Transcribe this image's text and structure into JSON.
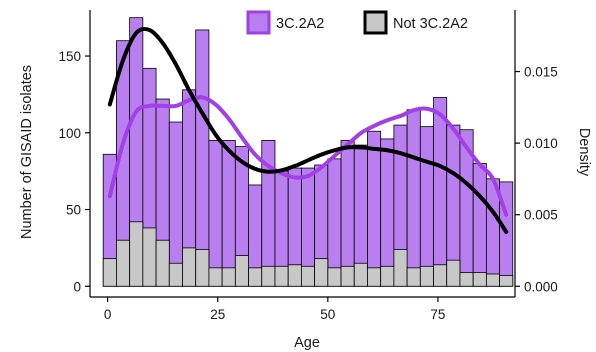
{
  "chart_data": {
    "type": "histogram-with-density",
    "xlabel": "Age",
    "ylabel_left": "Number of GISAID isolates",
    "ylabel_right": "Density",
    "xlim": [
      -4,
      92.5
    ],
    "ylim_left": [
      -7,
      180
    ],
    "ylim_right": [
      -0.00075,
      0.0193
    ],
    "x_ticks": [
      0,
      25,
      50,
      75
    ],
    "y_left_ticks": [
      0,
      50,
      100,
      150
    ],
    "y_right_ticks": [
      0.0,
      0.005,
      0.01,
      0.015
    ],
    "y_right_tick_labels": [
      "0.000",
      "0.005",
      "0.010",
      "0.015"
    ],
    "bin_width": 3,
    "bin_starts": [
      -1,
      2,
      5,
      8,
      11,
      14,
      17,
      20,
      23,
      26,
      29,
      32,
      35,
      38,
      41,
      44,
      47,
      50,
      53,
      56,
      59,
      62,
      65,
      68,
      71,
      74,
      77,
      80,
      83,
      86,
      89
    ],
    "series": [
      {
        "name": "3C.2A2",
        "color": "#b97ff0",
        "curve_color": "#a23fe6",
        "values": [
          86,
          160,
          175,
          142,
          122,
          107,
          128,
          167,
          95,
          95,
          91,
          66,
          95,
          75,
          77,
          77,
          79,
          83,
          95,
          92,
          101,
          96,
          105,
          115,
          104,
          123,
          105,
          102,
          80,
          70,
          68
        ],
        "density": [
          0.0063,
          0.01,
          0.0122,
          0.0126,
          0.0126,
          0.0126,
          0.013,
          0.0132,
          0.0127,
          0.0117,
          0.0104,
          0.0092,
          0.0084,
          0.0079,
          0.0076,
          0.0077,
          0.0083,
          0.0091,
          0.0099,
          0.0107,
          0.0112,
          0.0116,
          0.0119,
          0.0123,
          0.0124,
          0.012,
          0.011,
          0.0097,
          0.0085,
          0.0075,
          0.005
        ]
      },
      {
        "name": "Not 3C.2A2",
        "color": "#c8c8c8",
        "curve_color": "#000000",
        "values": [
          18,
          30,
          42,
          38,
          30,
          15,
          25,
          24,
          12,
          12,
          20,
          12,
          13,
          13,
          14,
          13,
          18,
          12,
          13,
          15,
          12,
          13,
          24,
          12,
          13,
          14,
          17,
          9,
          9,
          8,
          7
        ],
        "density": [
          0.0127,
          0.0158,
          0.0177,
          0.0179,
          0.017,
          0.0155,
          0.0137,
          0.0121,
          0.0106,
          0.0095,
          0.0087,
          0.0082,
          0.008,
          0.0081,
          0.0084,
          0.0088,
          0.0092,
          0.0095,
          0.0097,
          0.0097,
          0.0096,
          0.0095,
          0.0093,
          0.009,
          0.0087,
          0.0084,
          0.0079,
          0.0072,
          0.0063,
          0.0052,
          0.0038
        ]
      }
    ],
    "legend_position": "top-right"
  }
}
